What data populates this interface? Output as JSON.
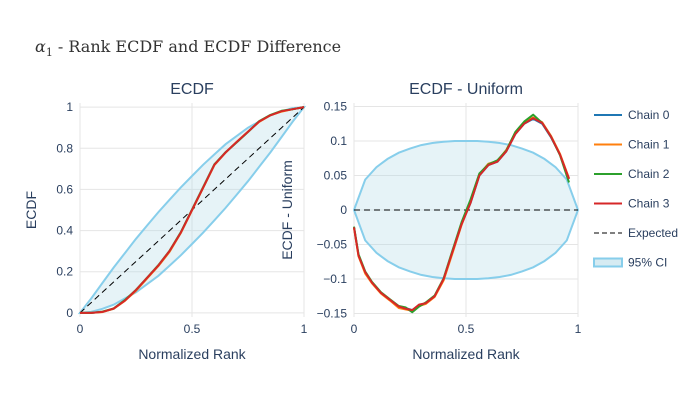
{
  "title": {
    "symbol": "α",
    "subscript": "1",
    "rest": " - Rank ECDF and ECDF Difference"
  },
  "colors": {
    "chain0": "#1f77b4",
    "chain1": "#ff7f0e",
    "chain2": "#2ca02c",
    "chain3": "#d62728",
    "ci_line": "#87CEEB",
    "ci_fill": "#ADD8E6",
    "expected": "#000000",
    "grid": "#e5e5e5"
  },
  "legend": {
    "placement": "right",
    "items": [
      {
        "label": "Chain 0",
        "style": "line",
        "color": "#1f77b4"
      },
      {
        "label": "Chain 1",
        "style": "line",
        "color": "#ff7f0e"
      },
      {
        "label": "Chain 2",
        "style": "line",
        "color": "#2ca02c"
      },
      {
        "label": "Chain 3",
        "style": "line",
        "color": "#d62728"
      },
      {
        "label": "Expected",
        "style": "dash",
        "color": "#000000"
      },
      {
        "label": "95% CI",
        "style": "band",
        "color": "#87CEEB"
      }
    ]
  },
  "chart_data": [
    {
      "type": "line",
      "title": "ECDF",
      "xlabel": "Normalized Rank",
      "ylabel": "ECDF",
      "xlim": [
        0,
        1
      ],
      "ylim": [
        -0.02,
        1.02
      ],
      "xticks": [
        0,
        0.5,
        1
      ],
      "xtick_labels": [
        "0",
        "0.5",
        "1"
      ],
      "yticks": [
        0,
        0.2,
        0.4,
        0.6,
        0.8,
        1
      ],
      "ytick_labels": [
        "0",
        "0.2",
        "0.4",
        "0.6",
        "0.8",
        "1"
      ],
      "grid": true,
      "x": [
        0,
        0.05,
        0.1,
        0.15,
        0.2,
        0.25,
        0.3,
        0.35,
        0.4,
        0.45,
        0.5,
        0.55,
        0.6,
        0.65,
        0.7,
        0.75,
        0.8,
        0.85,
        0.9,
        0.95,
        1
      ],
      "ci_lower": [
        0,
        0.005,
        0.02,
        0.04,
        0.07,
        0.1,
        0.14,
        0.18,
        0.23,
        0.28,
        0.335,
        0.39,
        0.45,
        0.51,
        0.575,
        0.64,
        0.71,
        0.78,
        0.855,
        0.93,
        1
      ],
      "ci_upper": [
        0,
        0.07,
        0.145,
        0.22,
        0.29,
        0.36,
        0.425,
        0.49,
        0.55,
        0.61,
        0.665,
        0.72,
        0.77,
        0.82,
        0.86,
        0.9,
        0.93,
        0.96,
        0.98,
        0.995,
        1
      ],
      "expected": [
        0,
        0.05,
        0.1,
        0.15,
        0.2,
        0.25,
        0.3,
        0.35,
        0.4,
        0.45,
        0.5,
        0.55,
        0.6,
        0.65,
        0.7,
        0.75,
        0.8,
        0.85,
        0.9,
        0.95,
        1
      ],
      "series": [
        {
          "name": "Chain 0",
          "color": "#1f77b4",
          "values": [
            0,
            0,
            0.005,
            0.02,
            0.06,
            0.11,
            0.17,
            0.23,
            0.3,
            0.39,
            0.5,
            0.61,
            0.72,
            0.78,
            0.83,
            0.88,
            0.93,
            0.96,
            0.98,
            0.99,
            1
          ]
        },
        {
          "name": "Chain 1",
          "color": "#ff7f0e",
          "values": [
            0,
            0,
            0.004,
            0.02,
            0.058,
            0.108,
            0.168,
            0.228,
            0.297,
            0.388,
            0.498,
            0.608,
            0.718,
            0.779,
            0.832,
            0.881,
            0.928,
            0.96,
            0.978,
            0.99,
            1
          ]
        },
        {
          "name": "Chain 2",
          "color": "#2ca02c",
          "values": [
            0,
            0,
            0.006,
            0.022,
            0.062,
            0.112,
            0.172,
            0.232,
            0.302,
            0.392,
            0.502,
            0.612,
            0.722,
            0.781,
            0.829,
            0.879,
            0.932,
            0.962,
            0.982,
            0.99,
            1
          ]
        },
        {
          "name": "Chain 3",
          "color": "#d62728",
          "values": [
            0,
            0,
            0.005,
            0.021,
            0.059,
            0.111,
            0.171,
            0.231,
            0.301,
            0.39,
            0.5,
            0.61,
            0.72,
            0.78,
            0.831,
            0.88,
            0.93,
            0.96,
            0.98,
            0.99,
            1
          ]
        }
      ]
    },
    {
      "type": "line",
      "title": "ECDF - Uniform",
      "xlabel": "Normalized Rank",
      "ylabel": "ECDF - Uniform",
      "xlim": [
        0,
        1
      ],
      "ylim": [
        -0.155,
        0.155
      ],
      "xticks": [
        0,
        0.5,
        1
      ],
      "xtick_labels": [
        "0",
        "0.5",
        "1"
      ],
      "yticks": [
        -0.15,
        -0.1,
        -0.05,
        0,
        0.05,
        0.1,
        0.15
      ],
      "ytick_labels": [
        "−0.15",
        "−0.1",
        "−0.05",
        "0",
        "0.05",
        "0.1",
        "0.15"
      ],
      "grid": true,
      "x": [
        0,
        0.05,
        0.1,
        0.15,
        0.2,
        0.25,
        0.3,
        0.35,
        0.4,
        0.45,
        0.5,
        0.55,
        0.6,
        0.65,
        0.7,
        0.75,
        0.8,
        0.85,
        0.9,
        0.95,
        1
      ],
      "ci_lower": [
        0,
        -0.044,
        -0.062,
        -0.074,
        -0.083,
        -0.089,
        -0.094,
        -0.097,
        -0.099,
        -0.1,
        -0.1,
        -0.1,
        -0.099,
        -0.097,
        -0.094,
        -0.089,
        -0.083,
        -0.074,
        -0.062,
        -0.044,
        0
      ],
      "ci_upper": [
        0,
        0.044,
        0.062,
        0.074,
        0.083,
        0.089,
        0.094,
        0.097,
        0.099,
        0.1,
        0.1,
        0.1,
        0.099,
        0.097,
        0.094,
        0.089,
        0.083,
        0.074,
        0.062,
        0.044,
        0
      ],
      "expected": [
        0,
        0,
        0,
        0,
        0,
        0,
        0,
        0,
        0,
        0,
        0,
        0,
        0,
        0,
        0,
        0,
        0,
        0,
        0,
        0,
        0
      ],
      "series": [
        {
          "name": "Chain 0",
          "color": "#1f77b4",
          "x": [
            0,
            0.02,
            0.05,
            0.08,
            0.12,
            0.16,
            0.2,
            0.23,
            0.26,
            0.29,
            0.32,
            0.36,
            0.4,
            0.44,
            0.48,
            0.52,
            0.56,
            0.6,
            0.64,
            0.68,
            0.72,
            0.76,
            0.8,
            0.84,
            0.88,
            0.92,
            0.96
          ],
          "values": [
            -0.025,
            -0.065,
            -0.09,
            -0.105,
            -0.12,
            -0.13,
            -0.14,
            -0.142,
            -0.145,
            -0.138,
            -0.135,
            -0.125,
            -0.1,
            -0.06,
            -0.02,
            0.01,
            0.05,
            0.065,
            0.07,
            0.085,
            0.11,
            0.125,
            0.132,
            0.125,
            0.105,
            0.08,
            0.045
          ]
        },
        {
          "name": "Chain 1",
          "color": "#ff7f0e",
          "x": [
            0,
            0.02,
            0.05,
            0.08,
            0.12,
            0.16,
            0.2,
            0.23,
            0.26,
            0.29,
            0.32,
            0.36,
            0.4,
            0.44,
            0.48,
            0.52,
            0.56,
            0.6,
            0.64,
            0.68,
            0.72,
            0.76,
            0.8,
            0.84,
            0.88,
            0.92,
            0.96
          ],
          "values": [
            -0.026,
            -0.067,
            -0.092,
            -0.106,
            -0.121,
            -0.131,
            -0.142,
            -0.144,
            -0.146,
            -0.139,
            -0.136,
            -0.126,
            -0.102,
            -0.062,
            -0.022,
            0.012,
            0.052,
            0.067,
            0.071,
            0.087,
            0.112,
            0.127,
            0.134,
            0.127,
            0.107,
            0.081,
            0.046
          ]
        },
        {
          "name": "Chain 2",
          "color": "#2ca02c",
          "x": [
            0,
            0.02,
            0.05,
            0.08,
            0.12,
            0.16,
            0.2,
            0.23,
            0.26,
            0.29,
            0.32,
            0.36,
            0.4,
            0.44,
            0.48,
            0.52,
            0.56,
            0.6,
            0.64,
            0.68,
            0.72,
            0.76,
            0.8,
            0.84,
            0.88,
            0.92,
            0.96
          ],
          "values": [
            -0.024,
            -0.064,
            -0.089,
            -0.104,
            -0.119,
            -0.129,
            -0.139,
            -0.141,
            -0.148,
            -0.14,
            -0.134,
            -0.124,
            -0.099,
            -0.058,
            -0.018,
            0.015,
            0.053,
            0.066,
            0.072,
            0.086,
            0.113,
            0.128,
            0.138,
            0.126,
            0.106,
            0.079,
            0.04
          ]
        },
        {
          "name": "Chain 3",
          "color": "#d62728",
          "x": [
            0,
            0.02,
            0.05,
            0.08,
            0.12,
            0.16,
            0.2,
            0.23,
            0.26,
            0.29,
            0.32,
            0.36,
            0.4,
            0.44,
            0.48,
            0.52,
            0.56,
            0.6,
            0.64,
            0.68,
            0.72,
            0.76,
            0.8,
            0.84,
            0.88,
            0.92,
            0.96
          ],
          "values": [
            -0.025,
            -0.066,
            -0.09,
            -0.105,
            -0.12,
            -0.13,
            -0.14,
            -0.143,
            -0.145,
            -0.137,
            -0.135,
            -0.125,
            -0.1,
            -0.06,
            -0.021,
            0.01,
            0.05,
            0.065,
            0.07,
            0.085,
            0.11,
            0.125,
            0.133,
            0.126,
            0.106,
            0.08,
            0.045
          ]
        }
      ]
    }
  ]
}
